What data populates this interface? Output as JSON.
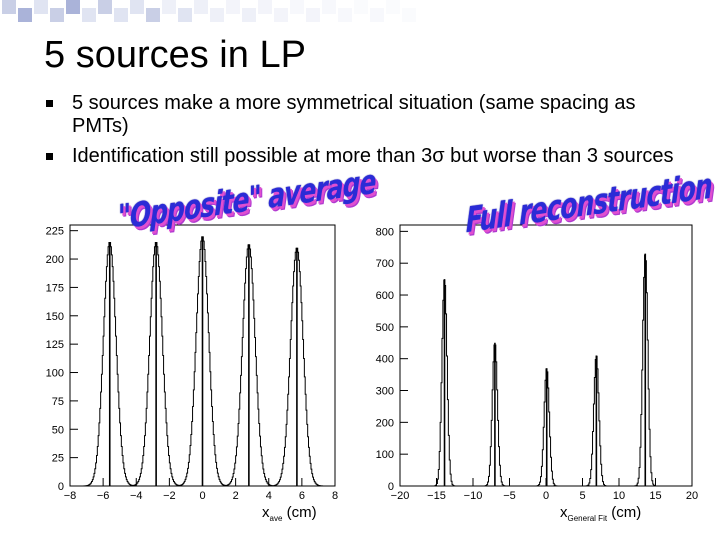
{
  "slide": {
    "title": "5 sources in LP",
    "bullets": [
      "5 sources make a more symmetrical situation (same spacing as PMTs)",
      "Identification still possible at more than 3σ but worse than 3 sources"
    ],
    "label_left": "\"Opposite\" average",
    "label_right": "Full reconstruction",
    "accent_color": "#2b2bd6",
    "shadow_color": "#e04fd0"
  },
  "chart_data": [
    {
      "type": "histogram",
      "xlabel_main": "x",
      "xlabel_sub": "ave",
      "xlabel_unit": "(cm)",
      "xlim": [
        -8,
        8
      ],
      "ylim": [
        0,
        230
      ],
      "xticks": [
        -8,
        -6,
        -4,
        -2,
        0,
        2,
        4,
        6,
        8
      ],
      "yticks": [
        0,
        25,
        50,
        75,
        100,
        125,
        150,
        175,
        200,
        225
      ],
      "peaks": [
        {
          "center": -5.6,
          "height": 215,
          "sigma": 0.38
        },
        {
          "center": -2.8,
          "height": 215,
          "sigma": 0.38
        },
        {
          "center": 0.0,
          "height": 220,
          "sigma": 0.38
        },
        {
          "center": 2.8,
          "height": 213,
          "sigma": 0.38
        },
        {
          "center": 5.7,
          "height": 210,
          "sigma": 0.38
        }
      ]
    },
    {
      "type": "histogram",
      "xlabel_main": "x",
      "xlabel_sub": "General Fit",
      "xlabel_unit": "(cm)",
      "xlim": [
        -20,
        20
      ],
      "ylim": [
        0,
        820
      ],
      "xticks": [
        -20,
        -15,
        -10,
        -5,
        0,
        5,
        10,
        15,
        20
      ],
      "yticks": [
        0,
        100,
        200,
        300,
        400,
        500,
        600,
        700,
        800
      ],
      "peaks": [
        {
          "center": -13.9,
          "height": 650,
          "sigma": 0.35
        },
        {
          "center": -7.0,
          "height": 450,
          "sigma": 0.35
        },
        {
          "center": 0.1,
          "height": 370,
          "sigma": 0.35
        },
        {
          "center": 6.9,
          "height": 410,
          "sigma": 0.35
        },
        {
          "center": 13.6,
          "height": 730,
          "sigma": 0.35
        }
      ]
    }
  ]
}
